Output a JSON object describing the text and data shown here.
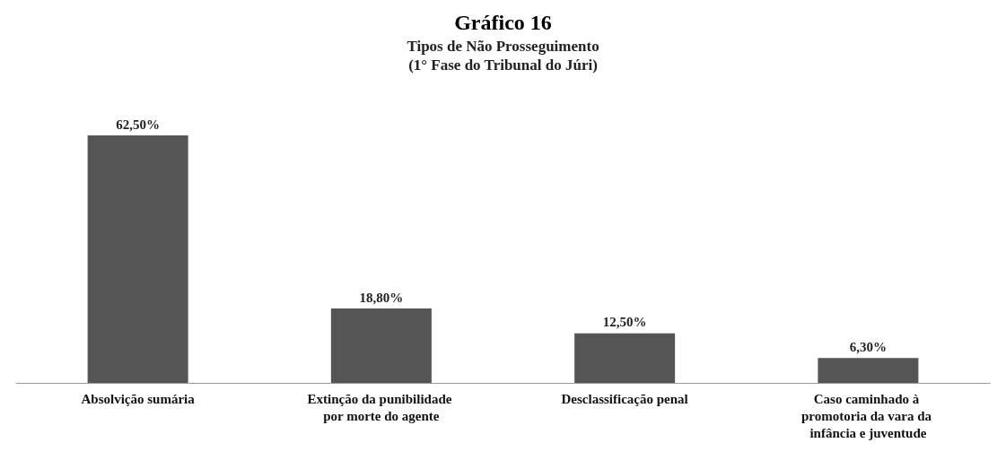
{
  "chart_data": {
    "type": "bar",
    "title": "Gráfico 16",
    "subtitle": "Tipos de Não Prosseguimento\n(1° Fase do Tribunal do Júri)",
    "categories": [
      "Absolvição sumária",
      "Extinção da punibilidade por morte do agente",
      "Desclassificação penal",
      "Caso caminhado à promotoria da vara da infância e juventude"
    ],
    "values": [
      62.5,
      18.8,
      12.5,
      6.3
    ],
    "value_labels": [
      "62,50%",
      "18,80%",
      "12,50%",
      "6,30%"
    ],
    "color": "#555555"
  }
}
